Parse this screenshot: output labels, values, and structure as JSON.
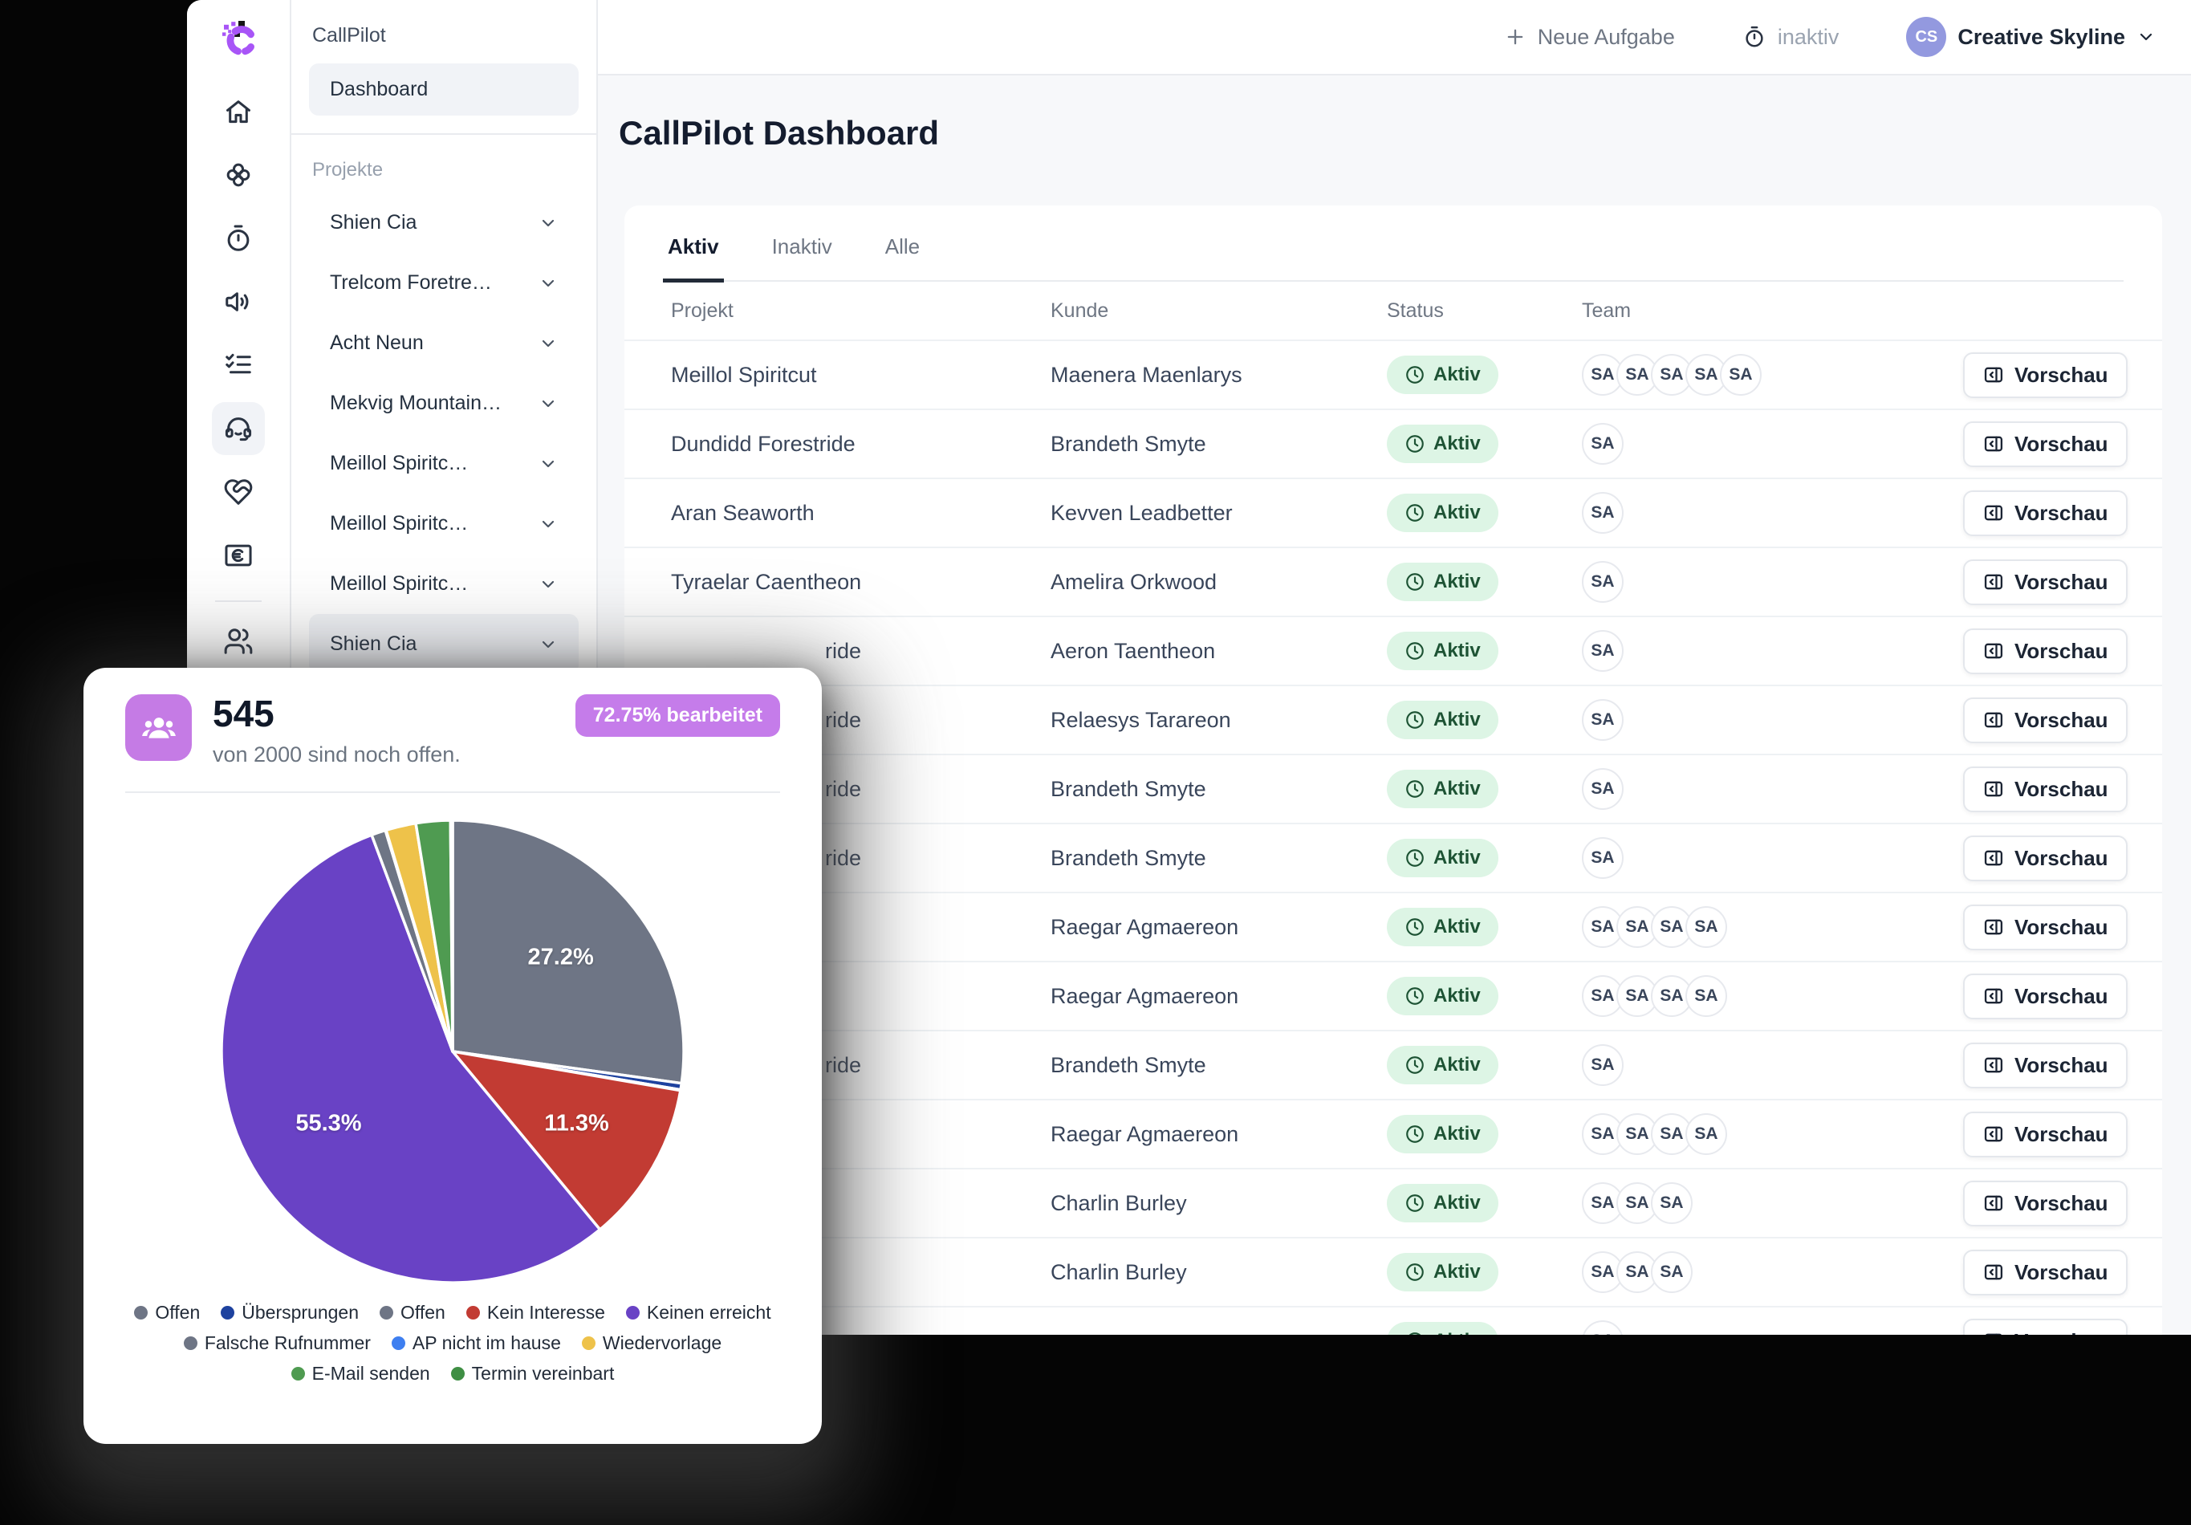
{
  "topbar": {
    "new_task_label": "Neue Aufgabe",
    "timer_label": "inaktiv",
    "account_initials": "CS",
    "account_name": "Creative Skyline"
  },
  "sidebar": {
    "brand": "CallPilot",
    "dashboard_label": "Dashboard",
    "section_label": "Projekte",
    "projects": [
      {
        "label": "Shien Cia"
      },
      {
        "label": "Trelcom Foretre…"
      },
      {
        "label": "Acht Neun"
      },
      {
        "label": "Mekvig Mountain…"
      },
      {
        "label": "Meillol Spiritc…"
      },
      {
        "label": "Meillol Spiritc…"
      },
      {
        "label": "Meillol Spiritc…"
      },
      {
        "label": "Shien Cia",
        "highlight": true
      }
    ],
    "rail_icons": [
      "home-icon",
      "brain-icon",
      "timer-icon",
      "volume-icon",
      "list-checks-icon",
      "headset-icon",
      "heart-handshake-icon",
      "euro-card-icon",
      "users-icon"
    ]
  },
  "main": {
    "title": "CallPilot Dashboard",
    "tabs": [
      {
        "label": "Aktiv",
        "active": true
      },
      {
        "label": "Inaktiv",
        "active": false
      },
      {
        "label": "Alle",
        "active": false
      }
    ],
    "table": {
      "columns": [
        "Projekt",
        "Kunde",
        "Status",
        "Team"
      ],
      "status_label": "Aktiv",
      "action_label": "Vorschau",
      "avatar_initials": "SA",
      "rows": [
        {
          "project": "Meillol Spiritcut",
          "kunde": "Maenera Maenlarys",
          "team": 5,
          "peek": false
        },
        {
          "project": "Dundidd Forestride",
          "kunde": "Brandeth Smyte",
          "team": 1,
          "peek": false
        },
        {
          "project": "Aran Seaworth",
          "kunde": "Kevven Leadbetter",
          "team": 1,
          "peek": false
        },
        {
          "project": "Tyraelar Caentheon",
          "kunde": "Amelira Orkwood",
          "team": 1,
          "peek": false
        },
        {
          "project": "ride",
          "kunde": "Aeron Taentheon",
          "team": 1,
          "peek": true
        },
        {
          "project": "ride",
          "kunde": "Relaesys Tarareon",
          "team": 1,
          "peek": true
        },
        {
          "project": "ride",
          "kunde": "Brandeth Smyte",
          "team": 1,
          "peek": true
        },
        {
          "project": "ride",
          "kunde": "Brandeth Smyte",
          "team": 1,
          "peek": true
        },
        {
          "project": "",
          "kunde": "Raegar Agmaereon",
          "team": 4,
          "peek": false
        },
        {
          "project": "",
          "kunde": "Raegar Agmaereon",
          "team": 4,
          "peek": false
        },
        {
          "project": "ride",
          "kunde": "Brandeth Smyte",
          "team": 1,
          "peek": true
        },
        {
          "project": "",
          "kunde": "Raegar Agmaereon",
          "team": 4,
          "peek": false
        },
        {
          "project": "",
          "kunde": "Charlin Burley",
          "team": 3,
          "peek": false
        },
        {
          "project": "",
          "kunde": "Charlin Burley",
          "team": 3,
          "peek": false
        },
        {
          "project": "",
          "kunde": "",
          "team": 1,
          "peek": false
        }
      ]
    }
  },
  "overlay": {
    "value": "545",
    "subtitle": "von 2000 sind noch offen.",
    "badge": "72.75% bearbeitet",
    "chart_data": {
      "type": "pie",
      "labels": [
        "Offen",
        "Übersprungen",
        "Offen",
        "Kein Interesse",
        "Keinen erreicht",
        "Falsche Rufnummer",
        "AP nicht im hause",
        "Wiedervorlage",
        "E-Mail senden",
        "Termin vereinbart"
      ],
      "values": [
        27.2,
        0.45,
        0.05,
        11.3,
        55.3,
        1.0,
        0.05,
        2.1,
        2.4,
        0.15
      ],
      "colors": [
        "#6e7585",
        "#1e429f",
        "#6e7585",
        "#c23b33",
        "#6942c5",
        "#6e7585",
        "#3e7ff0",
        "#eec24a",
        "#4f9b51",
        "#3f8f44"
      ],
      "unit": "%",
      "shown_value_labels": [
        "27.2%",
        "11.3%",
        "55.3%"
      ],
      "label_threshold": 10,
      "legend_rows": [
        [
          0,
          1,
          2,
          3,
          4
        ],
        [
          5,
          6,
          7
        ],
        [
          8,
          9
        ]
      ],
      "legend_position": "bottom",
      "start_angle_deg": 0
    }
  },
  "colors": {
    "brand_purple": "#a855f7",
    "accent_purple": "#c57be5",
    "status_green_bg": "#ddf5e5",
    "status_green_text": "#1d5334",
    "account_avatar_bg": "#9399df",
    "page_bg": "#f7f8fa"
  }
}
